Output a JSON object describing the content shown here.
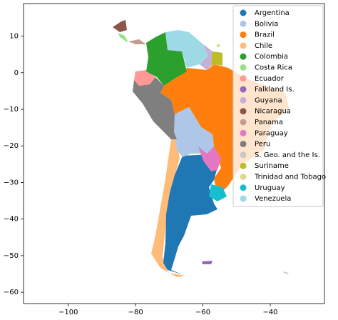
{
  "chart_data": {
    "type": "map",
    "xlim": [
      -113.3,
      -23.9
    ],
    "ylim": [
      -63.1,
      18.9
    ],
    "xticks": [
      {
        "value": -100,
        "label": "−100"
      },
      {
        "value": -80,
        "label": "−80"
      },
      {
        "value": -60,
        "label": "−60"
      },
      {
        "value": -40,
        "label": "−40"
      }
    ],
    "yticks": [
      10,
      0,
      {
        "value": -10,
        "label": "−10"
      },
      {
        "value": -20,
        "label": "−20"
      },
      {
        "value": -30,
        "label": "−30"
      },
      {
        "value": -40,
        "label": "−40"
      },
      {
        "value": -50,
        "label": "−50"
      },
      {
        "value": -60,
        "label": "−60"
      }
    ],
    "legend": "upper right",
    "series": [
      {
        "name": "Argentina",
        "color": "#1f77b4"
      },
      {
        "name": "Bolivia",
        "color": "#aec7e8"
      },
      {
        "name": "Brazil",
        "color": "#ff7f0e"
      },
      {
        "name": "Chile",
        "color": "#ffbb78"
      },
      {
        "name": "Colombia",
        "color": "#2ca02c"
      },
      {
        "name": "Costa Rica",
        "color": "#98df8a"
      },
      {
        "name": "Ecuador",
        "color": "#ff9896"
      },
      {
        "name": "Falkland Is.",
        "color": "#9467bd"
      },
      {
        "name": "Guyana",
        "color": "#c5b0d5"
      },
      {
        "name": "Nicaragua",
        "color": "#8c564b"
      },
      {
        "name": "Panama",
        "color": "#c49c94"
      },
      {
        "name": "Paraguay",
        "color": "#e377c2"
      },
      {
        "name": "Peru",
        "color": "#7f7f7f"
      },
      {
        "name": "S. Geo. and the Is.",
        "color": "#c7c7c7"
      },
      {
        "name": "Suriname",
        "color": "#bcbd22"
      },
      {
        "name": "Trinidad and Tobago",
        "color": "#dbdb8d"
      },
      {
        "name": "Uruguay",
        "color": "#17becf"
      },
      {
        "name": "Venezuela",
        "color": "#9edae5"
      }
    ]
  }
}
